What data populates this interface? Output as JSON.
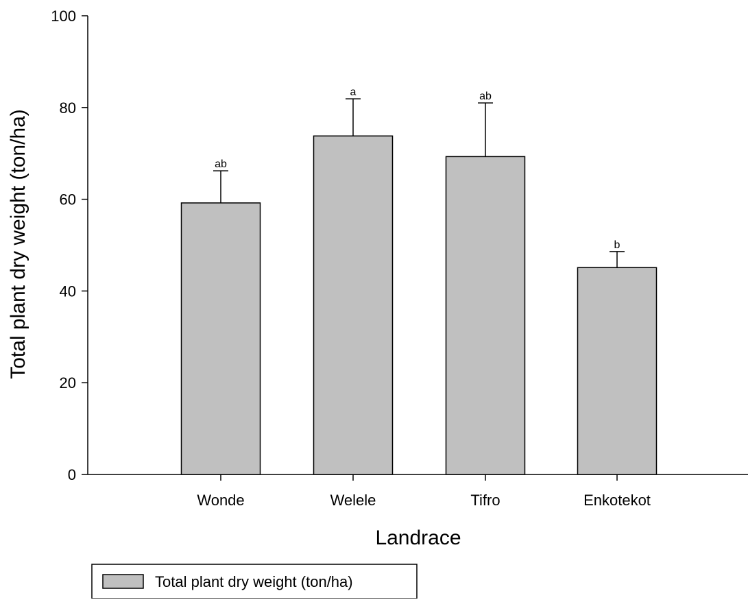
{
  "chart_data": {
    "type": "bar",
    "categories": [
      "Wonde",
      "Welele",
      "Tifro",
      "Enkotekot"
    ],
    "series": [
      {
        "name": "Total plant dry weight (ton/ha)",
        "values": [
          59.2,
          73.8,
          69.3,
          45.1
        ],
        "errors": [
          7.0,
          8.1,
          11.7,
          3.5
        ],
        "significance": [
          "ab",
          "a",
          "ab",
          "b"
        ],
        "color": "#c0c0c0"
      }
    ],
    "xlabel": "Landrace",
    "ylabel": "Total plant dry weight (ton/ha)",
    "ylim": [
      0,
      100
    ],
    "yticks": [
      "0",
      "20",
      "40",
      "60",
      "80",
      "100"
    ],
    "legend": {
      "position": "bottom-left"
    },
    "grid": false
  }
}
